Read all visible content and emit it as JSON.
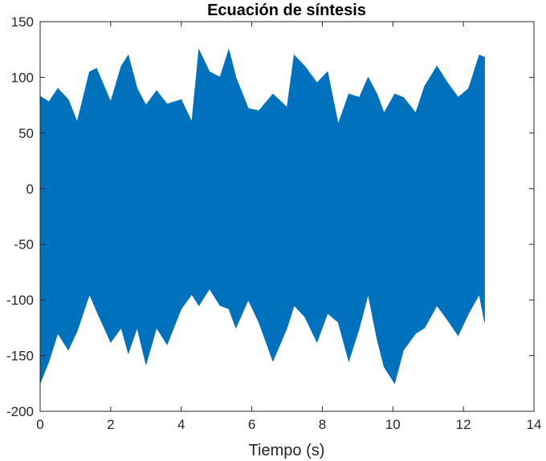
{
  "chart_data": {
    "type": "area",
    "title": "Ecuación de síntesis",
    "xlabel": "Tiempo (s)",
    "ylabel": "",
    "xlim": [
      0,
      14
    ],
    "ylim": [
      -200,
      150
    ],
    "xticks": [
      0,
      2,
      4,
      6,
      8,
      10,
      12,
      14
    ],
    "xtick_labels": [
      "0",
      "2",
      "4",
      "6",
      "8",
      "10",
      "12",
      "14"
    ],
    "yticks": [
      -200,
      -150,
      -100,
      -50,
      0,
      50,
      100,
      150
    ],
    "ytick_labels": [
      "-200",
      "-150",
      "-100",
      "-50",
      "0",
      "50",
      "100",
      "150"
    ],
    "grid": false,
    "series_color": "#0072BD",
    "series": [
      {
        "x": [
          0,
          0.25,
          0.5,
          0.8,
          1.05,
          1.4,
          1.6,
          2.0,
          2.3,
          2.5,
          2.75,
          3.0,
          3.3,
          3.6,
          4.0,
          4.3,
          4.5,
          4.8,
          5.1,
          5.35,
          5.55,
          5.9,
          6.2,
          6.6,
          7.0,
          7.2,
          7.5,
          7.85,
          8.15,
          8.45,
          8.75,
          9.05,
          9.3,
          9.55,
          9.75,
          10.05,
          10.3,
          10.65,
          10.9,
          11.25,
          11.55,
          11.85,
          12.15,
          12.45,
          12.6
        ],
        "upper": [
          83,
          78,
          90,
          80,
          60,
          105,
          108,
          78,
          110,
          120,
          90,
          75,
          88,
          76,
          80,
          60,
          125,
          105,
          100,
          125,
          100,
          72,
          70,
          85,
          73,
          120,
          110,
          95,
          105,
          58,
          85,
          82,
          100,
          85,
          68,
          85,
          82,
          68,
          92,
          110,
          95,
          82,
          90,
          120,
          118
        ],
        "lower": [
          -175,
          -155,
          -130,
          -145,
          -128,
          -95,
          -110,
          -138,
          -125,
          -148,
          -125,
          -158,
          -125,
          -140,
          -108,
          -95,
          -105,
          -90,
          -105,
          -108,
          -125,
          -100,
          -120,
          -155,
          -125,
          -105,
          -115,
          -138,
          -112,
          -120,
          -155,
          -125,
          -95,
          -135,
          -160,
          -175,
          -145,
          -130,
          -125,
          -105,
          -118,
          -132,
          -112,
          -95,
          -120
        ]
      }
    ]
  }
}
